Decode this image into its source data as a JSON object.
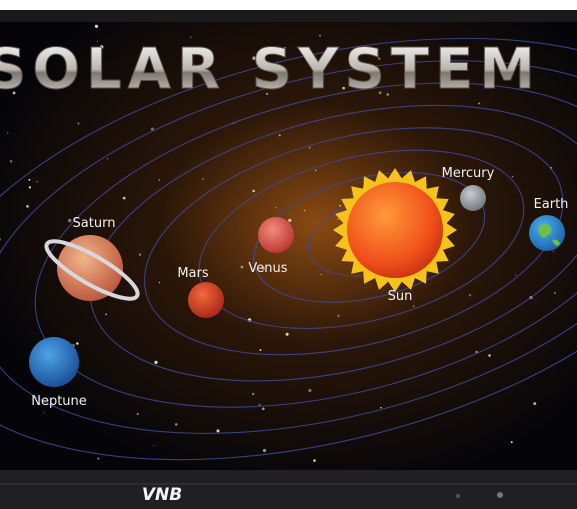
{
  "title": "SOLAR SYSTEM",
  "planets": [
    {
      "label": "Saturn"
    },
    {
      "label": "Mars"
    },
    {
      "label": "Venus"
    },
    {
      "label": "Sun"
    },
    {
      "label": "Mercury"
    },
    {
      "label": "Earth"
    },
    {
      "label": "Neptune"
    }
  ],
  "brand": "VNB"
}
